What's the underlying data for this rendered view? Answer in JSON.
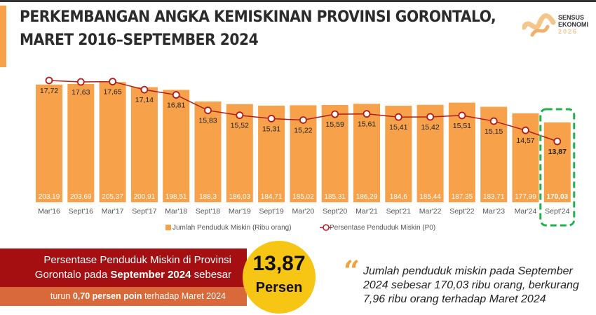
{
  "title_lines": [
    "PERKEMBANGAN ANGKA KEMISKINAN PROVINSI GORONTALO,",
    "MARET 2016–SEPTEMBER 2024"
  ],
  "logo": {
    "line1": "SENSUS",
    "line2": "EKONOMI",
    "line3": "2026"
  },
  "chart_data": {
    "type": "bar+line",
    "categories": [
      "Mar'16",
      "Sept'16",
      "Mar'17",
      "Sept'17",
      "Mar'18",
      "Sept'18",
      "Mar'19",
      "Sept'19",
      "Mar'20",
      "Sept'20",
      "Mar'21",
      "Sept'21",
      "Mar'22",
      "Sept'22",
      "Mar'23",
      "Mar'24",
      "Sept'24"
    ],
    "series": [
      {
        "name": "Jumlah Penduduk Miskin (Ribu orang)",
        "type": "bar",
        "color": "#f7a14a",
        "values": [
          203.19,
          203.69,
          205.37,
          200.91,
          198.51,
          188.3,
          186.03,
          184.71,
          185.02,
          185.31,
          186.29,
          184.6,
          185.44,
          187.35,
          183.71,
          177.99,
          170.03
        ],
        "labels": [
          "203,19",
          "203,69",
          "205,37",
          "200,91",
          "198,51",
          "188,3",
          "186,03",
          "184,71",
          "185,02",
          "185,31",
          "186,29",
          "184,6",
          "185,44",
          "187,35",
          "183,71",
          "177,99",
          "170,03"
        ]
      },
      {
        "name": "Persentase Penduduk Miskin (P0)",
        "type": "line",
        "color": "#b01c1c",
        "values": [
          17.72,
          17.63,
          17.65,
          17.14,
          16.81,
          15.83,
          15.52,
          15.31,
          15.22,
          15.59,
          15.61,
          15.41,
          15.42,
          15.51,
          15.15,
          14.57,
          13.87
        ],
        "labels": [
          "17,72",
          "17,63",
          "17,65",
          "17,14",
          "16,81",
          "15,83",
          "15,52",
          "15,31",
          "15,22",
          "15,59",
          "15,61",
          "15,41",
          "15,42",
          "15,51",
          "15,15",
          "14,57",
          "13,87"
        ]
      }
    ],
    "highlight": "Sept'24",
    "highlight_color": "#22b14c",
    "legend_position": "bottom",
    "grid": false
  },
  "summary": {
    "line1": "Persentase Penduduk Miskin di Provinsi",
    "line2_pre": "Gorontalo pada ",
    "line2_bold": "September 2024",
    "line2_post": " sebesar",
    "sub_pre": "turun ",
    "sub_bold": "0,70 persen poin",
    "sub_post": " terhadap Maret 2024",
    "value": "13,87",
    "unit": "Persen"
  },
  "quote": {
    "lines": [
      "Jumlah penduduk miskin pada September",
      "2024 sebesar 170,03 ribu orang, berkurang",
      "7,96 ribu orang terhadap Maret 2024"
    ]
  }
}
